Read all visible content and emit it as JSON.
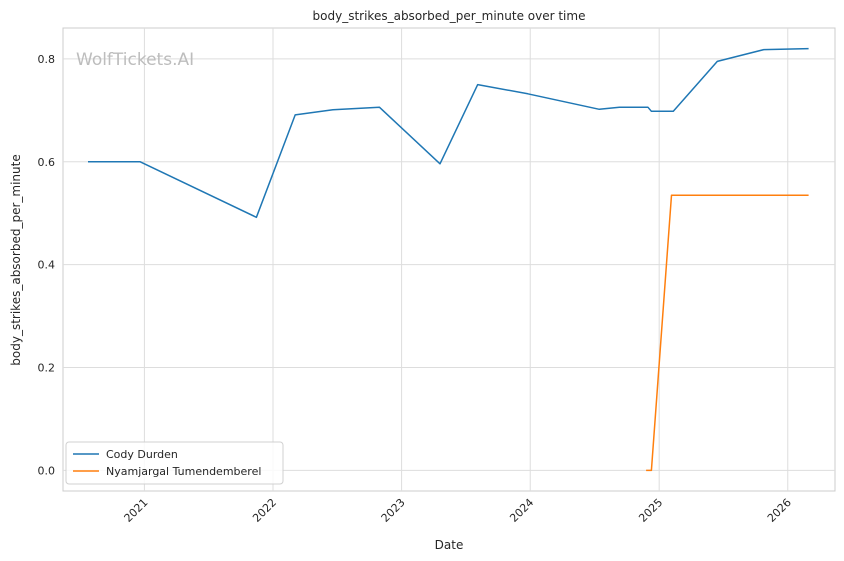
{
  "chart_data": {
    "type": "line",
    "title": "body_strikes_absorbed_per_minute over time",
    "xlabel": "Date",
    "ylabel": "body_strikes_absorbed_per_minute",
    "watermark": "WolfTickets.AI",
    "x_tick_labels": [
      "2021",
      "2022",
      "2023",
      "2024",
      "2025",
      "2026"
    ],
    "y_tick_labels": [
      "0.0",
      "0.2",
      "0.4",
      "0.6",
      "0.8"
    ],
    "ylim": [
      -0.04,
      0.86
    ],
    "xlim": [
      "2020-05-15",
      "2026-05-15"
    ],
    "grid": true,
    "legend_position": "lower-left",
    "series": [
      {
        "name": "Cody Durden",
        "color": "#1f77b4",
        "points": [
          [
            "2020-07-25",
            0.6
          ],
          [
            "2020-12-20",
            0.6
          ],
          [
            "2021-11-15",
            0.492
          ],
          [
            "2022-03-05",
            0.691
          ],
          [
            "2022-06-20",
            0.701
          ],
          [
            "2022-10-30",
            0.706
          ],
          [
            "2023-04-20",
            0.596
          ],
          [
            "2023-08-05",
            0.75
          ],
          [
            "2023-12-25",
            0.732
          ],
          [
            "2024-07-15",
            0.702
          ],
          [
            "2024-09-10",
            0.706
          ],
          [
            "2024-11-30",
            0.706
          ],
          [
            "2024-12-10",
            0.698
          ],
          [
            "2025-02-10",
            0.698
          ],
          [
            "2025-06-15",
            0.795
          ],
          [
            "2025-10-25",
            0.818
          ],
          [
            "2026-03-01",
            0.82
          ]
        ]
      },
      {
        "name": "Nyamjargal Tumendemberel",
        "color": "#ff7f0e",
        "points": [
          [
            "2024-11-25",
            0.0
          ],
          [
            "2024-12-10",
            0.0
          ],
          [
            "2025-02-05",
            0.535
          ],
          [
            "2026-03-01",
            0.535
          ]
        ]
      }
    ]
  }
}
